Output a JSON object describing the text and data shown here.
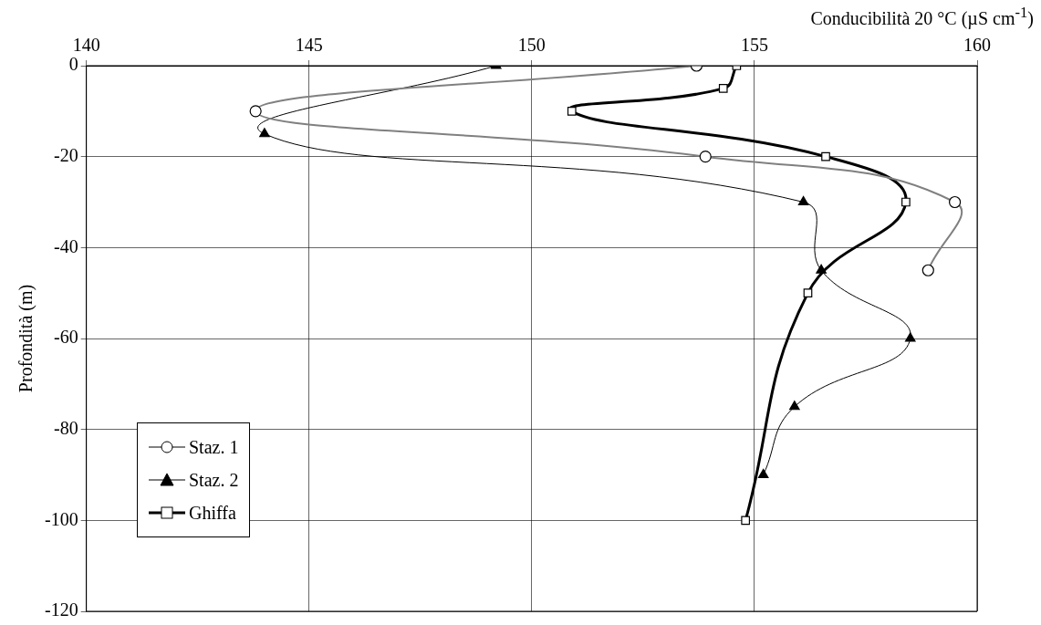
{
  "chart_data": {
    "type": "line",
    "xlabel": "Conducibilità 20 °C (µS cm$^{-1}$)",
    "ylabel": "Profondità (m)",
    "xlim": [
      140,
      160
    ],
    "xticks": [
      140,
      145,
      150,
      155,
      160
    ],
    "ylim": [
      -120,
      0
    ],
    "yticks": [
      0,
      -20,
      -40,
      -60,
      -80,
      -100,
      -120
    ],
    "grid": true,
    "legend": "bottom left",
    "series": [
      {
        "name": "Staz. 1",
        "color": "#808080",
        "marker": "circle",
        "x": [
          153.7,
          143.8,
          153.9,
          159.5,
          158.9
        ],
        "values": [
          0,
          -10,
          -20,
          -30,
          -45
        ]
      },
      {
        "name": "Staz. 2",
        "color": "#000000",
        "marker": "triangle",
        "x": [
          149.2,
          144.0,
          156.1,
          156.5,
          158.5,
          155.9,
          155.2
        ],
        "values": [
          0,
          -15,
          -30,
          -45,
          -60,
          -75,
          -90
        ]
      },
      {
        "name": "Ghiffa",
        "color": "#000000",
        "marker": "square",
        "x": [
          154.6,
          154.3,
          150.9,
          156.6,
          158.4,
          156.2,
          154.8
        ],
        "values": [
          0,
          -5,
          -10,
          -20,
          -30,
          -50,
          -100
        ]
      }
    ]
  }
}
